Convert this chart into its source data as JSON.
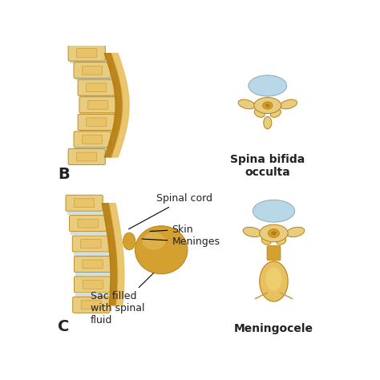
{
  "bg_color": "#ffffff",
  "gold_main": "#D4A030",
  "gold_light": "#E8C060",
  "gold_dark": "#B88010",
  "gold_pale": "#E8CC80",
  "disc_color": "#C8DDE0",
  "blue_cord": "#B8D8E8",
  "blue_cord_edge": "#8AAABB",
  "label_font": 9,
  "bold_font": 10,
  "label_B": "B",
  "label_C": "C",
  "label_spina_bifida_occulta": "Spina bifida\nocculta",
  "label_meningocele": "Meningocele",
  "label_spinal_cord": "Spinal cord",
  "label_skin": "Skin",
  "label_meninges": "Meninges",
  "label_sac": "Sac filled\nwith spinal\nfluid",
  "text_color": "#222222"
}
